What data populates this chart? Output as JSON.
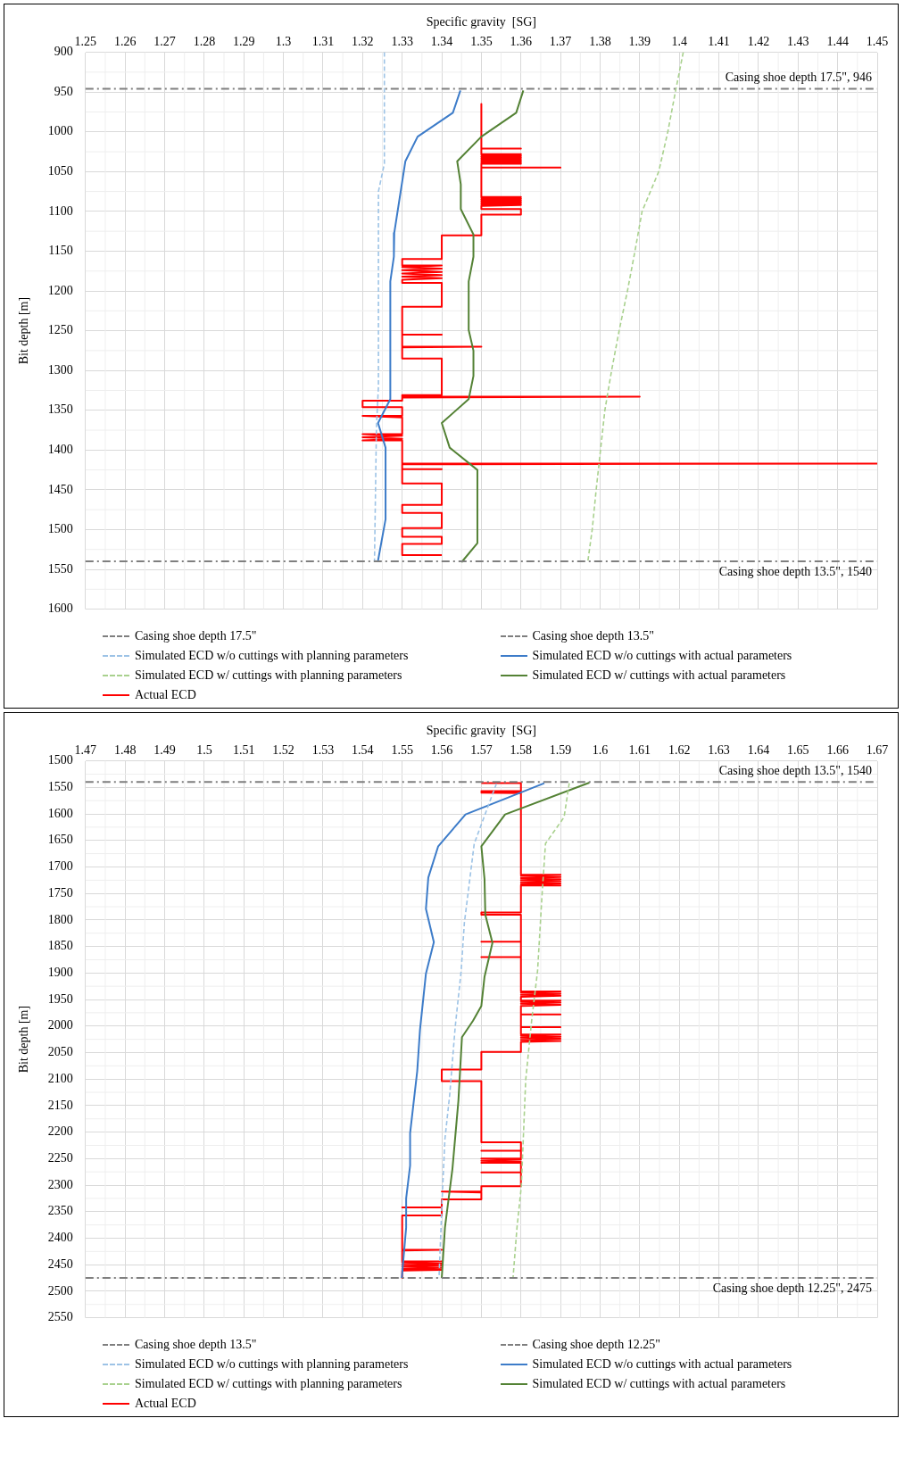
{
  "chart_data": [
    {
      "type": "line",
      "xlabel": "Specific gravity  [SG]",
      "ylabel": "Bit depth [m]",
      "xlim": [
        1.25,
        1.45
      ],
      "xticks": [
        1.25,
        1.26,
        1.27,
        1.28,
        1.29,
        1.3,
        1.31,
        1.32,
        1.33,
        1.34,
        1.35,
        1.36,
        1.37,
        1.38,
        1.39,
        1.4,
        1.41,
        1.42,
        1.43,
        1.44,
        1.45
      ],
      "ylim": [
        1600,
        900
      ],
      "yticks": [
        900,
        950,
        1000,
        1050,
        1100,
        1150,
        1200,
        1250,
        1300,
        1350,
        1400,
        1450,
        1500,
        1550,
        1600
      ],
      "grid": true,
      "legend": "bottom",
      "ref_lines": [
        {
          "axis": "y",
          "value": 946,
          "label": "Casing shoe depth 17.5\"",
          "color": "#7f7f7f",
          "line_style": "dashdot"
        },
        {
          "axis": "y",
          "value": 1540,
          "label": "Casing shoe depth 13.5\"",
          "color": "#7f7f7f",
          "line_style": "dashdot"
        }
      ],
      "annotations": [
        {
          "text": "Casing shoe depth 17.5\", 946",
          "y": 946
        },
        {
          "text": "Casing shoe depth 13.5\", 1540",
          "y": 1540
        }
      ],
      "series": [
        {
          "name": "Simulated ECD w/o cuttings with planning parameters",
          "color": "#9dc3e6",
          "line_style": "dashed",
          "x": [
            1.3255,
            1.3255,
            1.324,
            1.324,
            1.3235,
            1.323
          ],
          "values": [
            900,
            1040,
            1075,
            1320,
            1370,
            1540
          ]
        },
        {
          "name": "Simulated ECD w/o cuttings with actual parameters",
          "color": "#3d7cc9",
          "line_style": "solid",
          "x": [
            1.3447,
            1.3428,
            1.3339,
            1.3308,
            1.328,
            1.3279,
            1.327,
            1.327,
            1.3239,
            1.3258,
            1.3258,
            1.3239
          ],
          "values": [
            948,
            976,
            1006,
            1037,
            1127,
            1157,
            1188,
            1336,
            1366,
            1397,
            1487,
            1539
          ]
        },
        {
          "name": "Simulated ECD w/ cuttings with planning parameters",
          "color": "#a9d18e",
          "line_style": "dashed",
          "x": [
            1.401,
            1.399,
            1.3971,
            1.3948,
            1.3906,
            1.3888,
            1.3869,
            1.3848,
            1.3829,
            1.3812,
            1.3801,
            1.379,
            1.378,
            1.3769
          ],
          "values": [
            900,
            950,
            1000,
            1050,
            1100,
            1150,
            1200,
            1250,
            1300,
            1350,
            1400,
            1450,
            1500,
            1540
          ]
        },
        {
          "name": "Simulated ECD w/ cuttings with actual parameters",
          "color": "#548235",
          "line_style": "solid",
          "x": [
            1.3606,
            1.3588,
            1.35,
            1.3439,
            1.3448,
            1.3448,
            1.348,
            1.348,
            1.3468,
            1.3468,
            1.348,
            1.348,
            1.3468,
            1.34,
            1.342,
            1.349,
            1.349,
            1.345
          ],
          "values": [
            948,
            976,
            1006,
            1037,
            1066,
            1097,
            1129,
            1157,
            1188,
            1249,
            1275,
            1307,
            1336,
            1366,
            1397,
            1425,
            1517,
            1541
          ]
        },
        {
          "name": "Actual ECD",
          "color": "#ff0000",
          "line_style": "solid",
          "x": [
            1.35,
            1.35,
            1.36,
            1.35,
            1.35,
            1.36,
            1.35,
            1.36,
            1.35,
            1.36,
            1.35,
            1.36,
            1.35,
            1.36,
            1.35,
            1.36,
            1.35,
            1.36,
            1.35,
            1.35,
            1.37,
            1.35,
            1.35,
            1.36,
            1.35,
            1.36,
            1.35,
            1.36,
            1.35,
            1.36,
            1.35,
            1.36,
            1.35,
            1.36,
            1.35,
            1.35,
            1.36,
            1.36,
            1.35,
            1.35,
            1.34,
            1.34,
            1.33,
            1.33,
            1.34,
            1.33,
            1.34,
            1.33,
            1.34,
            1.33,
            1.34,
            1.33,
            1.34,
            1.33,
            1.33,
            1.34,
            1.34,
            1.33,
            1.33,
            1.34,
            1.33,
            1.33,
            1.35,
            1.33,
            1.33,
            1.34,
            1.34,
            1.33,
            1.33,
            1.39,
            1.33,
            1.33,
            1.32,
            1.32,
            1.33,
            1.33,
            1.32,
            1.33,
            1.33,
            1.32,
            1.33,
            1.32,
            1.33,
            1.32,
            1.33,
            1.33,
            1.45,
            1.33,
            1.33,
            1.34,
            1.33,
            1.33,
            1.34,
            1.34,
            1.33,
            1.33,
            1.34,
            1.34,
            1.33,
            1.33,
            1.34,
            1.34,
            1.33,
            1.33,
            1.34
          ],
          "values": [
            965,
            1021,
            1021,
            1021,
            1028,
            1028,
            1029,
            1030,
            1031,
            1032,
            1033,
            1034,
            1035,
            1036,
            1037,
            1038,
            1039,
            1040,
            1040,
            1045,
            1045,
            1045,
            1082,
            1082,
            1083,
            1084,
            1085,
            1086,
            1087,
            1088,
            1089,
            1090,
            1091,
            1092,
            1093,
            1097,
            1097,
            1104,
            1104,
            1130,
            1130,
            1160,
            1160,
            1168,
            1168,
            1170,
            1172,
            1174,
            1176,
            1178,
            1180,
            1182,
            1184,
            1186,
            1190,
            1190,
            1220,
            1220,
            1255,
            1255,
            1255,
            1270,
            1270,
            1271,
            1285,
            1285,
            1331,
            1331,
            1333,
            1333,
            1334,
            1338,
            1338,
            1346,
            1346,
            1357,
            1357,
            1359,
            1380,
            1380,
            1382,
            1384,
            1386,
            1388,
            1388,
            1417,
            1417,
            1418,
            1424,
            1424,
            1424,
            1442,
            1442,
            1469,
            1469,
            1479,
            1479,
            1498,
            1498,
            1509,
            1509,
            1518,
            1518,
            1532,
            1532
          ]
        }
      ]
    },
    {
      "type": "line",
      "xlabel": "Specific gravity  [SG]",
      "ylabel": "Bit depth [m]",
      "xlim": [
        1.47,
        1.67
      ],
      "xticks": [
        1.47,
        1.48,
        1.49,
        1.5,
        1.51,
        1.52,
        1.53,
        1.54,
        1.55,
        1.56,
        1.57,
        1.58,
        1.59,
        1.6,
        1.61,
        1.62,
        1.63,
        1.64,
        1.65,
        1.66,
        1.67
      ],
      "ylim": [
        2550,
        1500
      ],
      "yticks": [
        1500,
        1550,
        1600,
        1650,
        1700,
        1750,
        1800,
        1850,
        1900,
        1950,
        2000,
        2050,
        2100,
        2150,
        2200,
        2250,
        2300,
        2350,
        2400,
        2450,
        2500,
        2550
      ],
      "grid": true,
      "legend": "bottom",
      "ref_lines": [
        {
          "axis": "y",
          "value": 1540,
          "label": "Casing shoe depth 13.5\"",
          "color": "#7f7f7f",
          "line_style": "dashdot"
        },
        {
          "axis": "y",
          "value": 2475,
          "label": "Casing shoe depth 12.25\"",
          "color": "#7f7f7f",
          "line_style": "dashdot"
        }
      ],
      "annotations": [
        {
          "text": "Casing shoe depth 13.5\", 1540",
          "y": 1540
        },
        {
          "text": "Casing shoe depth 12.25\", 2475",
          "y": 2475
        }
      ],
      "series": [
        {
          "name": "Simulated ECD w/o cuttings with planning parameters",
          "color": "#9dc3e6",
          "line_style": "dashed",
          "x": [
            1.5738,
            1.5682,
            1.5657,
            1.5649,
            1.5634,
            1.562,
            1.5608,
            1.5601,
            1.5593
          ],
          "values": [
            1543,
            1656,
            1806,
            1896,
            2001,
            2130,
            2213,
            2325,
            2475
          ]
        },
        {
          "name": "Simulated ECD w/o cuttings with actual parameters",
          "color": "#3d7cc9",
          "line_style": "solid",
          "x": [
            1.5859,
            1.566,
            1.5591,
            1.5566,
            1.556,
            1.558,
            1.556,
            1.5545,
            1.5538,
            1.552,
            1.552,
            1.551,
            1.551,
            1.5499
          ],
          "values": [
            1542,
            1601,
            1661,
            1720,
            1779,
            1842,
            1901,
            2007,
            2085,
            2202,
            2263,
            2325,
            2380,
            2475
          ]
        },
        {
          "name": "Simulated ECD w/ cuttings with planning parameters",
          "color": "#a9d18e",
          "line_style": "dashed",
          "x": [
            1.5922,
            1.5909,
            1.5862,
            1.5853,
            1.5842,
            1.5827,
            1.5812,
            1.5801,
            1.579,
            1.578
          ],
          "values": [
            1542,
            1606,
            1656,
            1756,
            1896,
            1990,
            2102,
            2302,
            2380,
            2475
          ]
        },
        {
          "name": "Simulated ECD w/ cuttings with actual parameters",
          "color": "#548235",
          "line_style": "solid",
          "x": [
            1.5973,
            1.576,
            1.57,
            1.5708,
            1.571,
            1.5728,
            1.5708,
            1.57,
            1.5679,
            1.5651,
            1.5642,
            1.5627,
            1.5608,
            1.56
          ],
          "values": [
            1541,
            1601,
            1661,
            1723,
            1790,
            1843,
            1907,
            1962,
            1990,
            2021,
            2141,
            2269,
            2380,
            2475
          ]
        },
        {
          "name": "Actual ECD",
          "color": "#ff0000",
          "line_style": "solid",
          "x": [
            1.57,
            1.58,
            1.58,
            1.57,
            1.58,
            1.57,
            1.58,
            1.58,
            1.59,
            1.58,
            1.59,
            1.58,
            1.59,
            1.58,
            1.59,
            1.58,
            1.59,
            1.58,
            1.59,
            1.58,
            1.58,
            1.57,
            1.57,
            1.58,
            1.58,
            1.57,
            1.58,
            1.58,
            1.57,
            1.58,
            1.58,
            1.59,
            1.58,
            1.59,
            1.58,
            1.59,
            1.58,
            1.58,
            1.59,
            1.58,
            1.59,
            1.58,
            1.59,
            1.58,
            1.58,
            1.59,
            1.58,
            1.58,
            1.59,
            1.58,
            1.58,
            1.59,
            1.58,
            1.59,
            1.58,
            1.59,
            1.58,
            1.59,
            1.58,
            1.58,
            1.57,
            1.57,
            1.56,
            1.56,
            1.57,
            1.57,
            1.58,
            1.58,
            1.57,
            1.58,
            1.58,
            1.57,
            1.58,
            1.57,
            1.58,
            1.57,
            1.58,
            1.58,
            1.57,
            1.58,
            1.58,
            1.57,
            1.57,
            1.56,
            1.57,
            1.57,
            1.56,
            1.56,
            1.55,
            1.56,
            1.56,
            1.55,
            1.55,
            1.56,
            1.55,
            1.55,
            1.56,
            1.55,
            1.56,
            1.55,
            1.56,
            1.55,
            1.56,
            1.55,
            1.56,
            1.55,
            1.55
          ],
          "values": [
            1542,
            1542,
            1557,
            1557,
            1559,
            1560,
            1561,
            1715,
            1715,
            1717,
            1719,
            1721,
            1723,
            1725,
            1727,
            1729,
            1731,
            1733,
            1735,
            1735,
            1786,
            1786,
            1790,
            1790,
            1841,
            1841,
            1841,
            1870,
            1870,
            1870,
            1935,
            1935,
            1937,
            1939,
            1941,
            1943,
            1945,
            1952,
            1952,
            1954,
            1956,
            1958,
            1960,
            1962,
            1978,
            1978,
            1978,
            2002,
            2002,
            2002,
            2016,
            2016,
            2018,
            2020,
            2022,
            2024,
            2026,
            2028,
            2030,
            2049,
            2049,
            2082,
            2082,
            2104,
            2104,
            2219,
            2219,
            2235,
            2235,
            2235,
            2250,
            2250,
            2252,
            2254,
            2256,
            2258,
            2258,
            2276,
            2276,
            2276,
            2302,
            2302,
            2312,
            2312,
            2314,
            2327,
            2327,
            2342,
            2342,
            2342,
            2357,
            2357,
            2422,
            2422,
            2423,
            2444,
            2444,
            2446,
            2448,
            2450,
            2452,
            2454,
            2456,
            2458,
            2460,
            2461,
            2475
          ]
        }
      ]
    }
  ]
}
